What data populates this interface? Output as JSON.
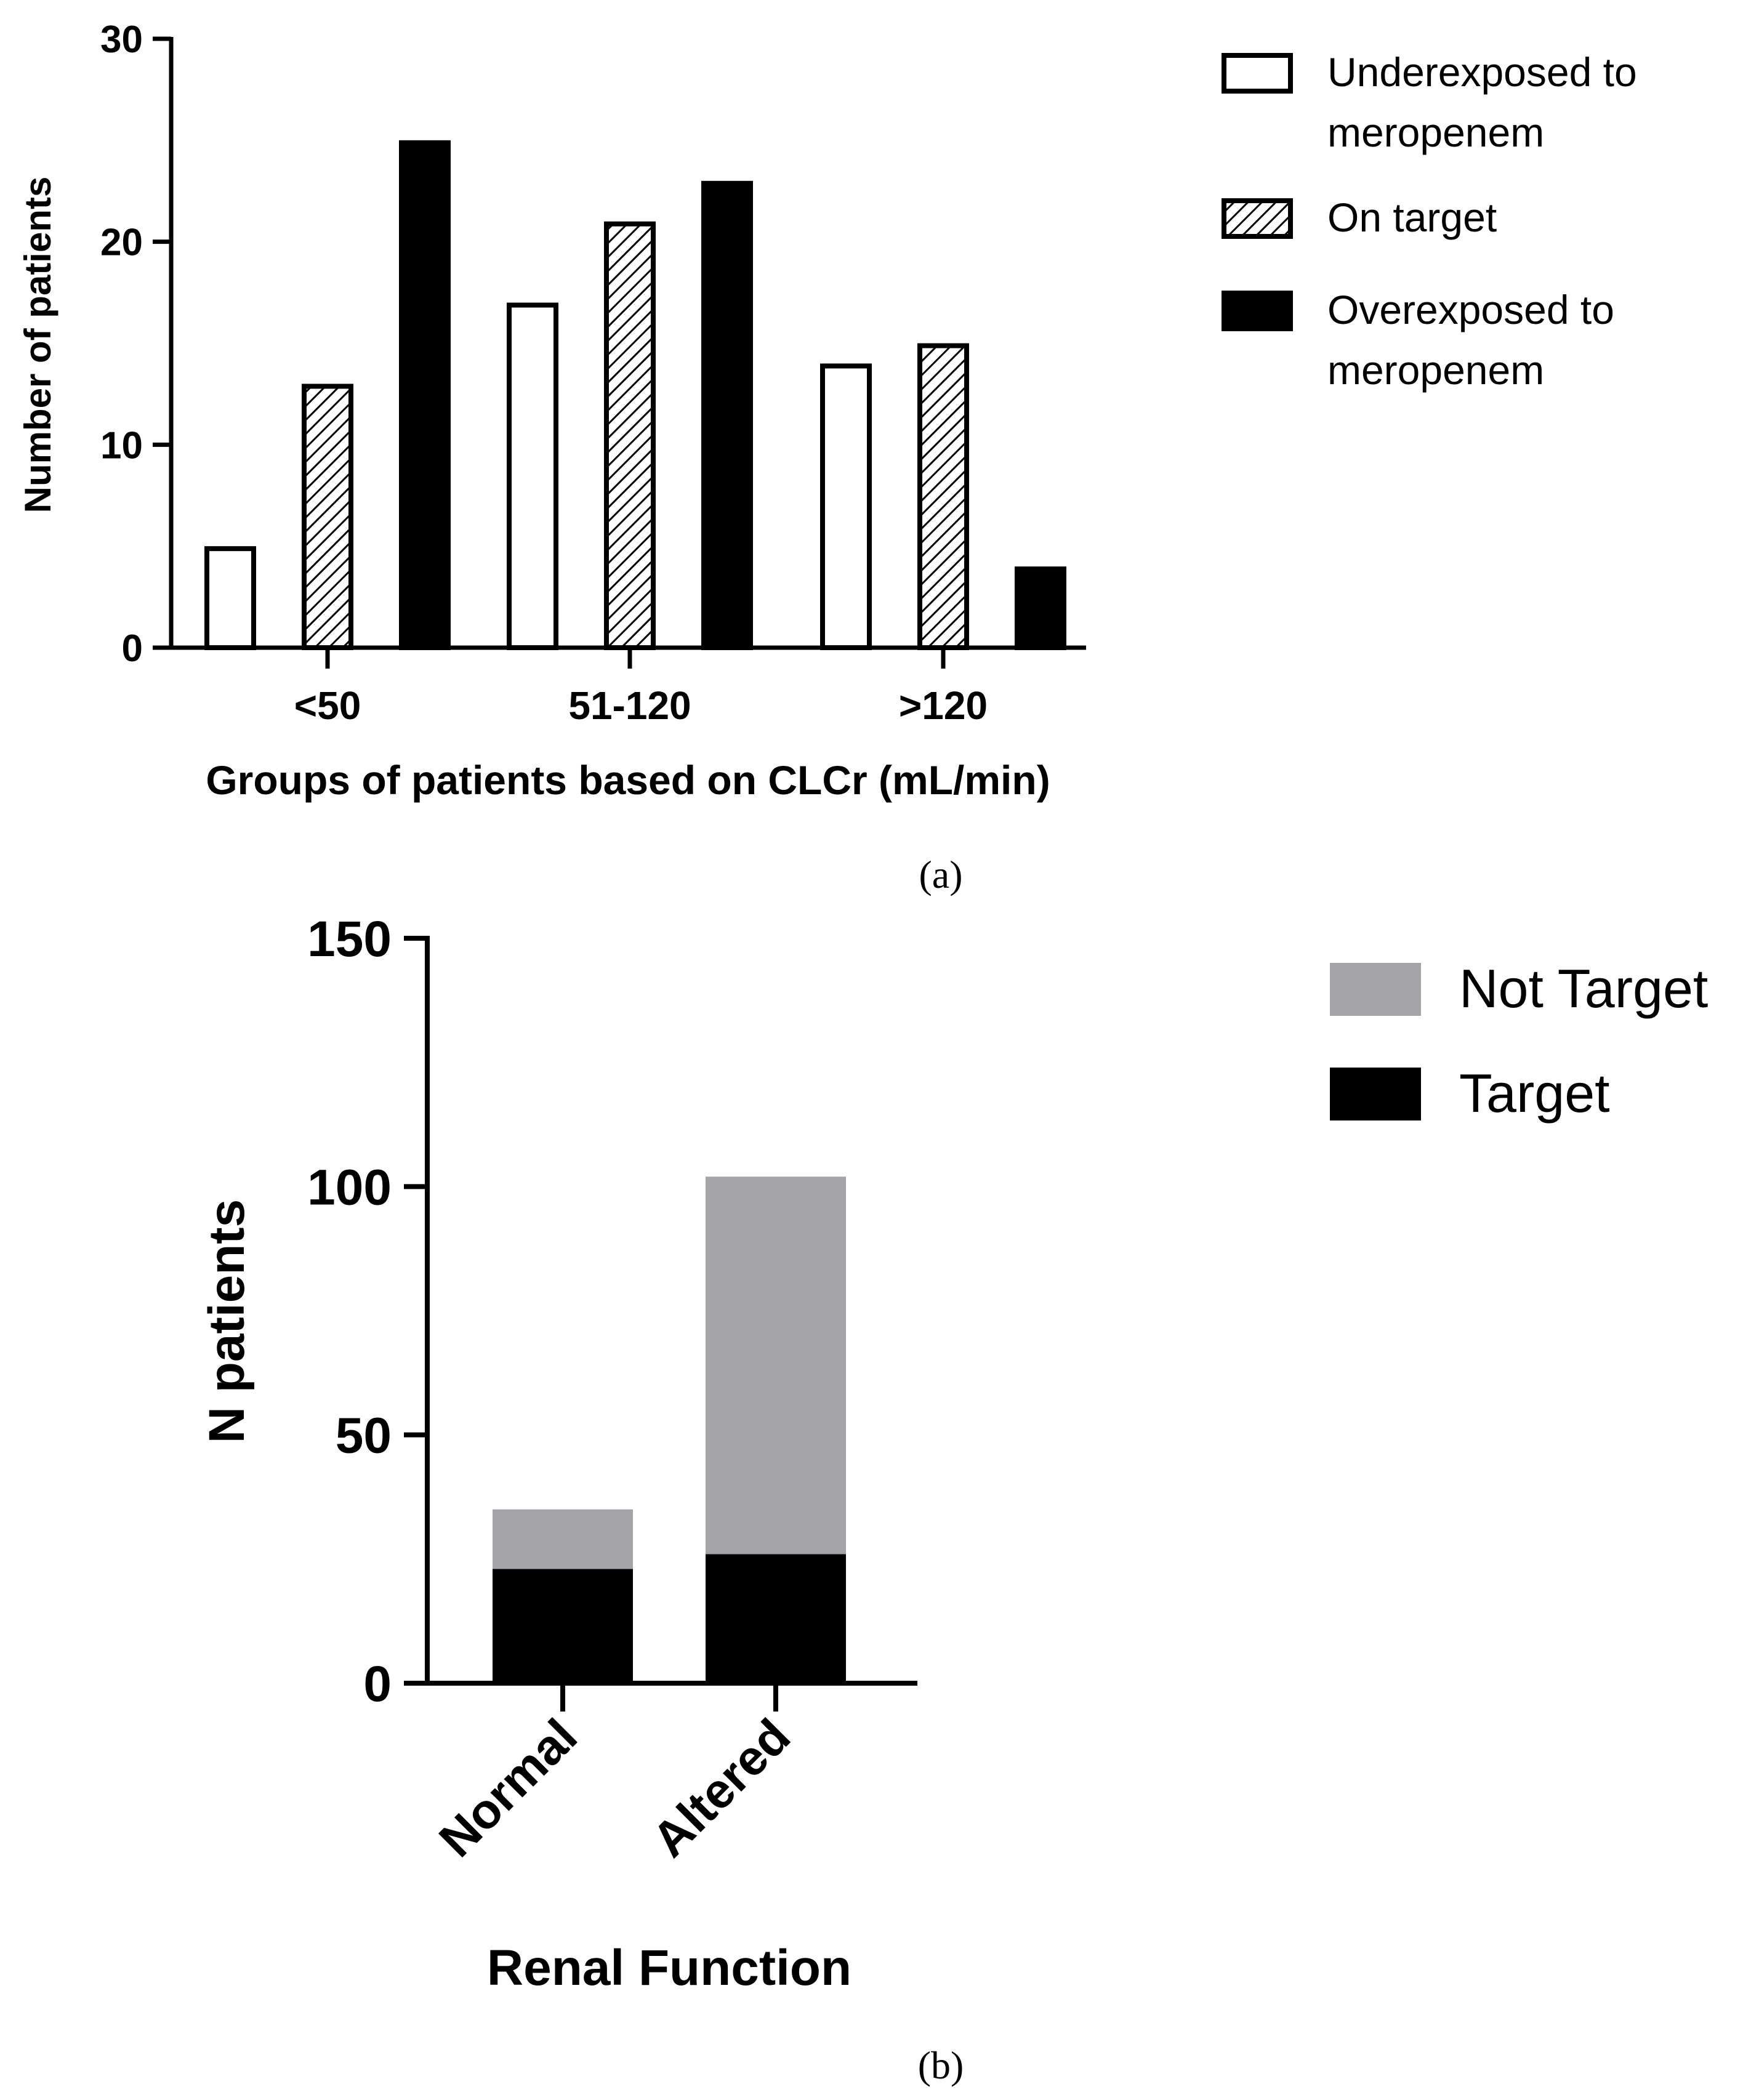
{
  "chart_data": [
    {
      "panel_label": "(a)",
      "type": "bar",
      "categories": [
        "<50",
        "51-120",
        ">120"
      ],
      "series": [
        {
          "name": "Underexposed to meropenem",
          "legend_lines": [
            "Underexposed to",
            "meropenem"
          ],
          "fill": "open",
          "values": [
            5,
            17,
            14
          ]
        },
        {
          "name": "On target",
          "legend_lines": [
            "On target"
          ],
          "fill": "hatched",
          "values": [
            13,
            21,
            15
          ]
        },
        {
          "name": "Overexposed to meropenem",
          "legend_lines": [
            "Overexposed to",
            "meropenem"
          ],
          "fill": "solid",
          "values": [
            25,
            23,
            4
          ]
        }
      ],
      "xlabel": "Groups of patients based on CLCr (mL/min)",
      "ylabel": "Number of patients",
      "ylim": [
        0,
        30
      ],
      "yticks": [
        0,
        10,
        20,
        30
      ],
      "legend": "right",
      "grid": false
    },
    {
      "panel_label": "(b)",
      "type": "bar",
      "stacked": true,
      "categories": [
        "Normal",
        "Altered"
      ],
      "series": [
        {
          "name": "Target",
          "values": [
            23,
            26
          ],
          "color": "#000000"
        },
        {
          "name": "Not Target",
          "values": [
            12,
            76
          ],
          "color": "#a4a3a8"
        }
      ],
      "legend_order": [
        "Not Target",
        "Target"
      ],
      "xlabel": "Renal Function",
      "ylabel": "N patients",
      "ylim": [
        0,
        150
      ],
      "yticks": [
        0,
        50,
        100,
        150
      ],
      "legend": "right",
      "grid": false
    }
  ]
}
